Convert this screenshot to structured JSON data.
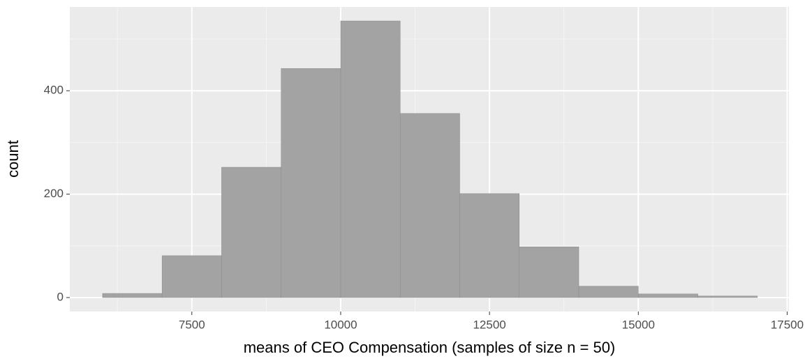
{
  "chart_data": {
    "type": "histogram",
    "x_label": "means of CEO Compensation (samples of size n = 50)",
    "y_label": "count",
    "bins": [
      6000,
      7000,
      8000,
      9000,
      10000,
      11000,
      12000,
      13000,
      14000,
      15000,
      16000,
      17000
    ],
    "values": [
      8,
      81,
      252,
      443,
      535,
      356,
      201,
      98,
      22,
      7,
      3
    ],
    "color": "#a3a3a3",
    "xlim": [
      5450,
      17530
    ],
    "xticks": [
      7500,
      10000,
      12500,
      15000,
      17500
    ],
    "ylim": [
      -27,
      562
    ],
    "yticks": [
      0,
      200,
      400
    ],
    "grid": true
  }
}
